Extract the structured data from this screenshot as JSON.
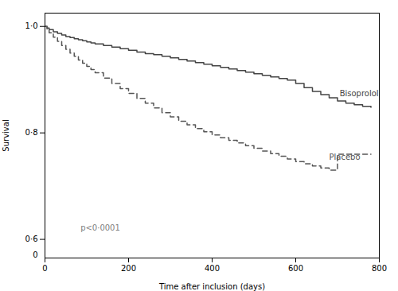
{
  "chart_data": {
    "type": "step",
    "xlabel": "Time after inclusion (days)",
    "ylabel": "Survival",
    "xlim": [
      0,
      800
    ],
    "xticks": [
      0,
      200,
      400,
      600,
      800
    ],
    "ylim": [
      0.565,
      1.025
    ],
    "yticks": [
      {
        "value": 0.6,
        "label": "0·6"
      },
      {
        "value": 0.8,
        "label": "0·8"
      },
      {
        "value": 1.0,
        "label": "1·0"
      }
    ],
    "x": [
      0,
      5,
      10,
      20,
      30,
      40,
      50,
      60,
      70,
      80,
      90,
      100,
      110,
      120,
      140,
      160,
      180,
      200,
      220,
      240,
      260,
      280,
      300,
      320,
      340,
      360,
      380,
      400,
      420,
      440,
      460,
      480,
      500,
      520,
      540,
      560,
      580,
      600,
      620,
      640,
      660,
      680,
      700,
      720,
      740,
      760,
      780
    ],
    "series": [
      {
        "name": "Bisoprolol",
        "color": "#444444",
        "line_style": "solid",
        "values": [
          1.0,
          0.997,
          0.994,
          0.99,
          0.987,
          0.984,
          0.981,
          0.979,
          0.977,
          0.975,
          0.973,
          0.971,
          0.969,
          0.967,
          0.964,
          0.961,
          0.958,
          0.955,
          0.952,
          0.949,
          0.947,
          0.944,
          0.941,
          0.938,
          0.935,
          0.932,
          0.929,
          0.926,
          0.923,
          0.92,
          0.917,
          0.914,
          0.911,
          0.908,
          0.905,
          0.902,
          0.899,
          0.893,
          0.885,
          0.878,
          0.872,
          0.866,
          0.86,
          0.856,
          0.853,
          0.85,
          0.848
        ]
      },
      {
        "name": "Placebo",
        "color": "#555555",
        "line_style": "dashed",
        "values": [
          1.0,
          0.994,
          0.988,
          0.98,
          0.972,
          0.964,
          0.957,
          0.95,
          0.944,
          0.937,
          0.931,
          0.925,
          0.919,
          0.913,
          0.903,
          0.893,
          0.883,
          0.874,
          0.865,
          0.856,
          0.847,
          0.838,
          0.83,
          0.822,
          0.815,
          0.808,
          0.802,
          0.796,
          0.791,
          0.786,
          0.781,
          0.776,
          0.771,
          0.766,
          0.761,
          0.756,
          0.751,
          0.746,
          0.742,
          0.738,
          0.734,
          0.73,
          0.76,
          0.76,
          0.76,
          0.76,
          0.76
        ]
      }
    ],
    "annotations": [
      {
        "text": "p<0·0001",
        "x": 85,
        "y": 0.617,
        "color": "gray"
      },
      {
        "text": "Bisoprolol",
        "x": 705,
        "y": 0.873,
        "color": "#444444"
      },
      {
        "text": "Placebo",
        "x": 680,
        "y": 0.76,
        "color": "#555555"
      },
      {
        "text": "0"
      }
    ]
  }
}
